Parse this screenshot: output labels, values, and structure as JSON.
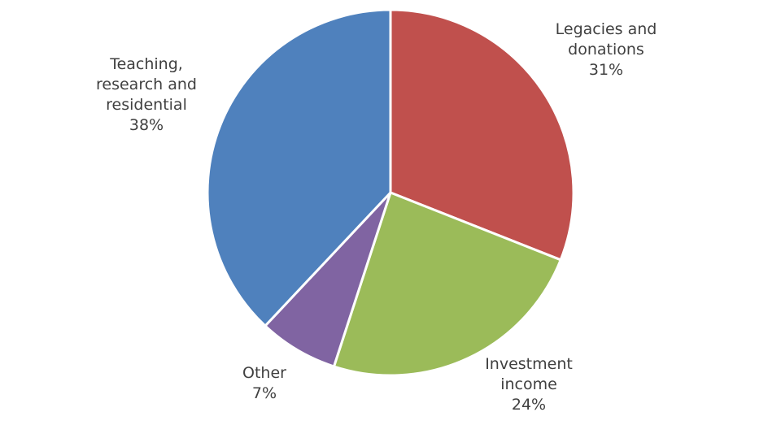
{
  "chart_data": {
    "type": "pie",
    "title": "",
    "center": [
      480,
      237
    ],
    "radius": 225,
    "start_angle_deg": 0,
    "direction": "clockwise",
    "slices": [
      {
        "label": "Legacies and donations",
        "value": 31,
        "display": "Legacies and\ndonations\n31%",
        "color": "#C0504D"
      },
      {
        "label": "Investment income",
        "value": 24,
        "display": "Investment\nincome\n24%",
        "color": "#9BBB59"
      },
      {
        "label": "Other",
        "value": 7,
        "display": "Other\n7%",
        "color": "#8064A2"
      },
      {
        "label": "Teaching, research and residential",
        "value": 38,
        "display": "Teaching,\nresearch and\nresidential\n38%",
        "color": "#4F81BD"
      }
    ]
  },
  "labels": {
    "legacies": "Legacies and\ndonations\n31%",
    "investment": "Investment\nincome\n24%",
    "other": "Other\n7%",
    "teaching": "Teaching,\nresearch and\nresidential\n38%"
  }
}
